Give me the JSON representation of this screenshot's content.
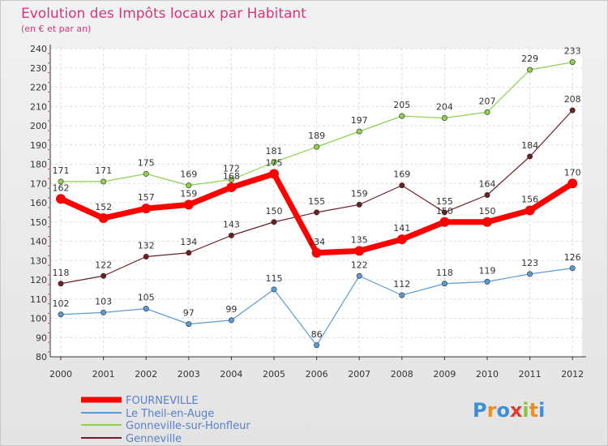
{
  "chart_data": {
    "type": "line",
    "title": "Evolution des Impôts locaux par Habitant",
    "subtitle": "(en € et par an)",
    "xlabel": "",
    "ylabel": "",
    "x": [
      "2000",
      "2001",
      "2002",
      "2003",
      "2004",
      "2005",
      "2006",
      "2007",
      "2008",
      "2009",
      "2010",
      "2011",
      "2012"
    ],
    "yticks": [
      80,
      90,
      100,
      110,
      120,
      130,
      140,
      150,
      160,
      170,
      180,
      190,
      200,
      210,
      220,
      230,
      240
    ],
    "ylim": [
      80,
      240
    ],
    "grid": true,
    "legend_position": "bottom-left",
    "series": [
      {
        "name": "FOURNEVILLE",
        "color": "#ff0000",
        "values": [
          162,
          152,
          157,
          159,
          168,
          175,
          134,
          135,
          141,
          150,
          150,
          156,
          170
        ]
      },
      {
        "name": "Le Theil-en-Auge",
        "color": "#5a9bd5",
        "values": [
          102,
          103,
          105,
          97,
          99,
          115,
          86,
          122,
          112,
          118,
          119,
          123,
          126
        ]
      },
      {
        "name": "Gonneville-sur-Honfleur",
        "color": "#8fd14f",
        "values": [
          171,
          171,
          175,
          169,
          172,
          181,
          189,
          197,
          205,
          204,
          207,
          229,
          233
        ]
      },
      {
        "name": "Genneville",
        "color": "#6b1f24",
        "values": [
          118,
          122,
          132,
          134,
          143,
          150,
          155,
          159,
          169,
          155,
          164,
          184,
          208
        ]
      }
    ]
  },
  "brand": {
    "letters": [
      "P",
      "r",
      "o",
      "x",
      "i",
      "t",
      "i"
    ],
    "colors": [
      "#3a8fd8",
      "#f28c1c",
      "#3a8fd8",
      "#e33a2f",
      "#8cc43f",
      "#f28c1c",
      "#3a8fd8"
    ]
  }
}
